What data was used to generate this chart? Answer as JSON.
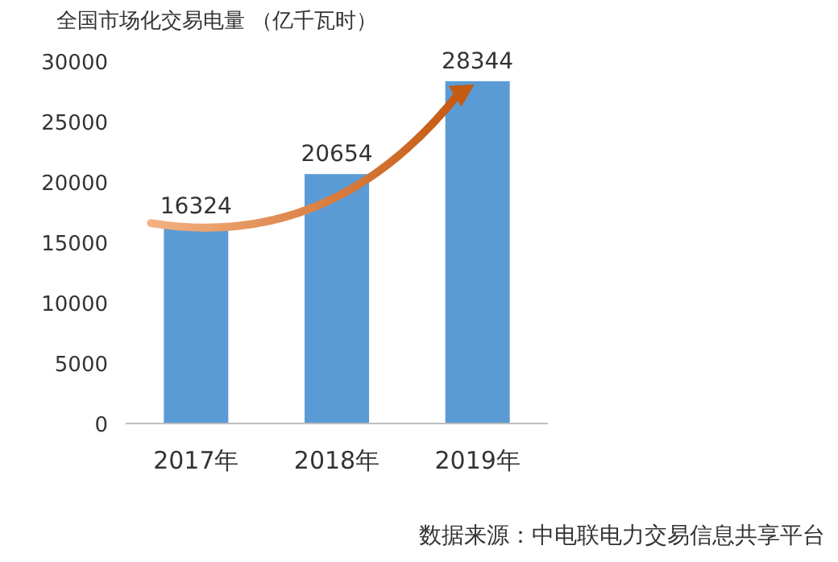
{
  "chart_data": {
    "type": "bar",
    "title": "全国市场化交易电量 （亿千瓦时）",
    "categories": [
      "2017年",
      "2018年",
      "2019年"
    ],
    "values": [
      16324,
      20654,
      28344
    ],
    "color": "#5b9bd5",
    "ylim": [
      0,
      30000
    ],
    "yticks": [
      0,
      5000,
      10000,
      15000,
      20000,
      25000,
      30000
    ],
    "grid": false,
    "data_labels": true,
    "annotations": [
      "数据来源：中电联电力交易信息共享平台"
    ]
  }
}
